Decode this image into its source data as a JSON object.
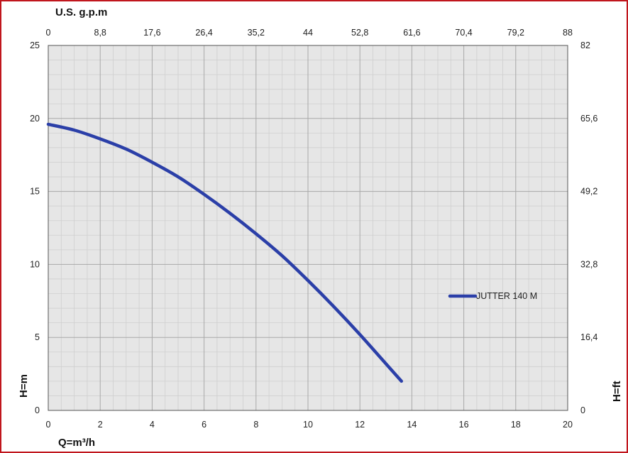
{
  "chart_data": {
    "type": "line",
    "x_bottom_label": "Q=m³/h",
    "x_top_label": "U.S. g.p.m",
    "y_left_label": "H=m",
    "y_right_label": "H=ft",
    "x_bottom_ticks": [
      "0",
      "2",
      "4",
      "6",
      "8",
      "10",
      "12",
      "14",
      "16",
      "18",
      "20"
    ],
    "x_top_ticks": [
      "0",
      "8,8",
      "17,6",
      "26,4",
      "35,2",
      "44",
      "52,8",
      "61,6",
      "70,4",
      "79,2",
      "88"
    ],
    "y_left_ticks": [
      "0",
      "5",
      "10",
      "15",
      "20",
      "25"
    ],
    "y_right_ticks": [
      "0",
      "16,4",
      "32,8",
      "49,2",
      "65,6",
      "82"
    ],
    "xlim": [
      0,
      20
    ],
    "ylim": [
      0,
      25
    ],
    "grid": true,
    "legend_position": "right-middle",
    "series": [
      {
        "name": "JUTTER 140 M",
        "color": "#2b3fa8",
        "x": [
          0,
          1,
          2,
          3,
          4,
          5,
          6,
          7,
          8,
          9,
          10,
          11,
          12,
          13,
          13.6
        ],
        "y": [
          19.6,
          19.2,
          18.6,
          17.9,
          17.0,
          16.0,
          14.8,
          13.5,
          12.1,
          10.6,
          8.9,
          7.1,
          5.2,
          3.2,
          2.0
        ]
      }
    ]
  }
}
